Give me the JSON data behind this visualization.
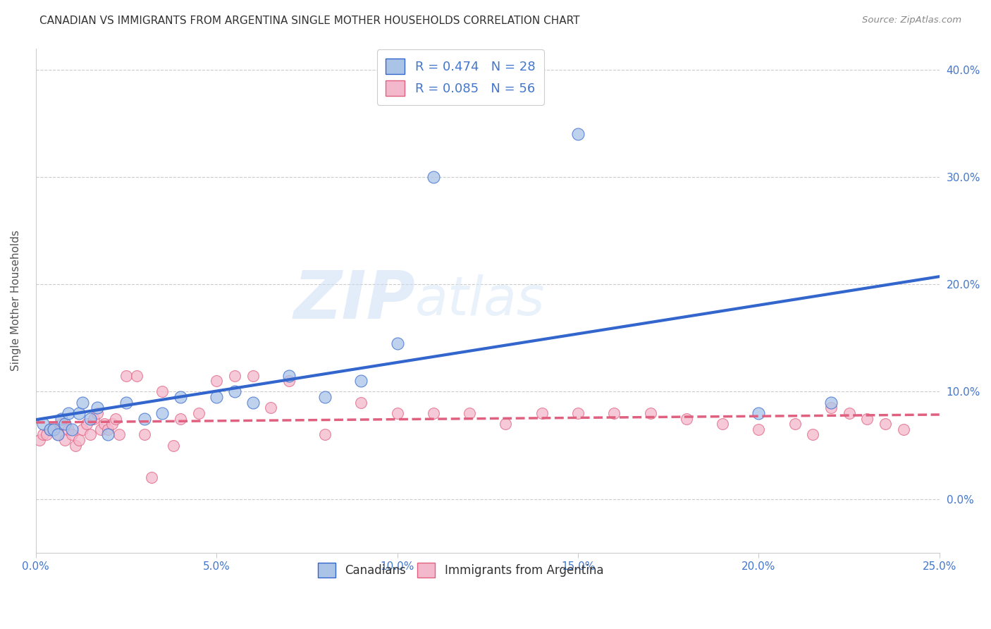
{
  "title": "CANADIAN VS IMMIGRANTS FROM ARGENTINA SINGLE MOTHER HOUSEHOLDS CORRELATION CHART",
  "source": "Source: ZipAtlas.com",
  "ylabel": "Single Mother Households",
  "xlim": [
    0.0,
    0.25
  ],
  "ylim": [
    -0.05,
    0.42
  ],
  "yticks": [
    0.0,
    0.1,
    0.2,
    0.3,
    0.4
  ],
  "xticks": [
    0.0,
    0.05,
    0.1,
    0.15,
    0.2,
    0.25
  ],
  "background_color": "#ffffff",
  "watermark_zip": "ZIP",
  "watermark_atlas": "atlas",
  "canadians_color": "#aac4e8",
  "canadians_line_color": "#3366cc",
  "argentina_color": "#f4b8cc",
  "argentina_line_color": "#e06080",
  "legend_R_canadian": "0.474",
  "legend_N_canadian": "28",
  "legend_R_argentina": "0.085",
  "legend_N_argentina": "56",
  "canadians_x": [
    0.002,
    0.004,
    0.005,
    0.006,
    0.007,
    0.008,
    0.009,
    0.01,
    0.012,
    0.013,
    0.015,
    0.017,
    0.02,
    0.025,
    0.03,
    0.035,
    0.04,
    0.05,
    0.055,
    0.06,
    0.07,
    0.08,
    0.09,
    0.1,
    0.11,
    0.15,
    0.2,
    0.22
  ],
  "canadians_y": [
    0.07,
    0.065,
    0.065,
    0.06,
    0.075,
    0.07,
    0.08,
    0.065,
    0.08,
    0.09,
    0.075,
    0.085,
    0.06,
    0.09,
    0.075,
    0.08,
    0.095,
    0.095,
    0.1,
    0.09,
    0.115,
    0.095,
    0.11,
    0.145,
    0.3,
    0.34,
    0.08,
    0.09
  ],
  "argentina_x": [
    0.001,
    0.002,
    0.003,
    0.004,
    0.005,
    0.006,
    0.007,
    0.008,
    0.009,
    0.01,
    0.011,
    0.012,
    0.013,
    0.014,
    0.015,
    0.016,
    0.017,
    0.018,
    0.019,
    0.02,
    0.021,
    0.022,
    0.023,
    0.025,
    0.028,
    0.03,
    0.032,
    0.035,
    0.038,
    0.04,
    0.045,
    0.05,
    0.055,
    0.06,
    0.065,
    0.07,
    0.08,
    0.09,
    0.1,
    0.11,
    0.12,
    0.13,
    0.14,
    0.15,
    0.16,
    0.17,
    0.18,
    0.19,
    0.2,
    0.21,
    0.215,
    0.22,
    0.225,
    0.23,
    0.235,
    0.24
  ],
  "argentina_y": [
    0.055,
    0.06,
    0.06,
    0.065,
    0.065,
    0.06,
    0.07,
    0.055,
    0.065,
    0.06,
    0.05,
    0.055,
    0.065,
    0.07,
    0.06,
    0.075,
    0.08,
    0.065,
    0.07,
    0.065,
    0.07,
    0.075,
    0.06,
    0.115,
    0.115,
    0.06,
    0.02,
    0.1,
    0.05,
    0.075,
    0.08,
    0.11,
    0.115,
    0.115,
    0.085,
    0.11,
    0.06,
    0.09,
    0.08,
    0.08,
    0.08,
    0.07,
    0.08,
    0.08,
    0.08,
    0.08,
    0.075,
    0.07,
    0.065,
    0.07,
    0.06,
    0.085,
    0.08,
    0.075,
    0.07,
    0.065
  ],
  "grid_color": "#cccccc",
  "title_color": "#333333",
  "tick_color": "#4477cc",
  "ylabel_color": "#555555"
}
